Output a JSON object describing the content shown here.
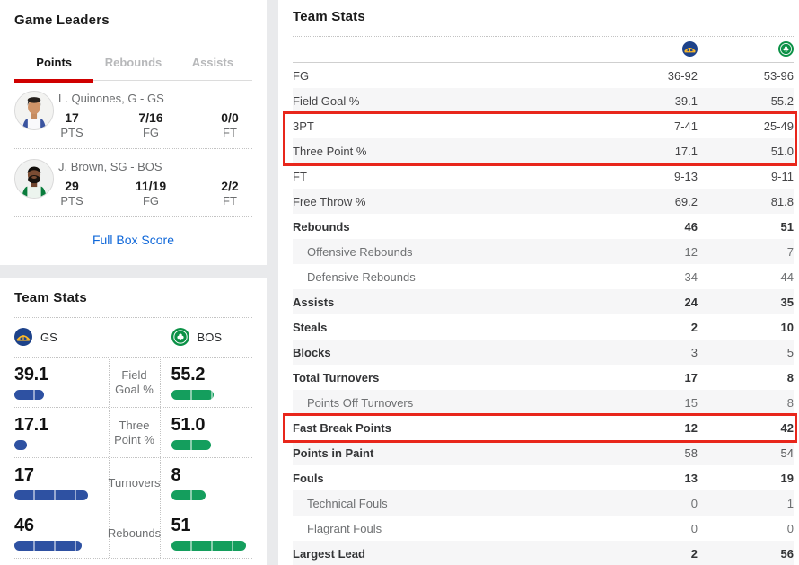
{
  "colors": {
    "bar_blue": "#2e51a2",
    "bar_green": "#149e5d",
    "tab_accent_red": "#d00000",
    "link_blue": "#1068d9",
    "highlight_red": "#e8261b",
    "gs_logo_blue": "#1d428a",
    "gs_logo_gold": "#fdb927",
    "bos_logo_green": "#0b9146"
  },
  "game_leaders": {
    "title": "Game Leaders",
    "tabs": [
      {
        "label": "Points",
        "active": true
      },
      {
        "label": "Rebounds",
        "active": false
      },
      {
        "label": "Assists",
        "active": false
      }
    ],
    "leaders": [
      {
        "name": "L. Quinones, G - GS",
        "avatar": "player1",
        "stats": [
          {
            "value": "17",
            "label": "PTS"
          },
          {
            "value": "7/16",
            "label": "FG"
          },
          {
            "value": "0/0",
            "label": "FT"
          }
        ]
      },
      {
        "name": "J. Brown, SG - BOS",
        "avatar": "player2",
        "stats": [
          {
            "value": "29",
            "label": "PTS"
          },
          {
            "value": "11/19",
            "label": "FG"
          },
          {
            "value": "2/2",
            "label": "FT"
          }
        ]
      }
    ],
    "link_label": "Full Box Score"
  },
  "left_team_stats": {
    "title": "Team Stats",
    "teams": [
      {
        "abbr": "GS",
        "logo": "warriors-logo"
      },
      {
        "abbr": "BOS",
        "logo": "celtics-logo"
      }
    ],
    "rows": [
      {
        "label": "Field Goal %",
        "gs": "39.1",
        "bos": "55.2",
        "gs_bar_pct": 37,
        "bos_bar_pct": 53
      },
      {
        "label": "Three Point %",
        "gs": "17.1",
        "bos": "51.0",
        "gs_bar_pct": 16,
        "bos_bar_pct": 49
      },
      {
        "label": "Turnovers",
        "gs": "17",
        "bos": "8",
        "gs_bar_pct": 91,
        "bos_bar_pct": 43
      },
      {
        "label": "Rebounds",
        "gs": "46",
        "bos": "51",
        "gs_bar_pct": 83,
        "bos_bar_pct": 92
      }
    ]
  },
  "right_team_stats": {
    "title": "Team Stats",
    "rows": [
      {
        "label": "FG",
        "gs": "36-92",
        "bos": "53-96",
        "variant": "plain",
        "value_bold": false,
        "highlight": 0
      },
      {
        "label": "Field Goal %",
        "gs": "39.1",
        "bos": "55.2",
        "variant": "plain",
        "value_bold": false,
        "highlight": 0
      },
      {
        "label": "3PT",
        "gs": "7-41",
        "bos": "25-49",
        "variant": "plain",
        "value_bold": false,
        "highlight": 1
      },
      {
        "label": "Three Point %",
        "gs": "17.1",
        "bos": "51.0",
        "variant": "plain",
        "value_bold": false,
        "highlight": 1
      },
      {
        "label": "FT",
        "gs": "9-13",
        "bos": "9-11",
        "variant": "plain",
        "value_bold": false,
        "highlight": 0
      },
      {
        "label": "Free Throw %",
        "gs": "69.2",
        "bos": "81.8",
        "variant": "plain",
        "value_bold": false,
        "highlight": 0
      },
      {
        "label": "Rebounds",
        "gs": "46",
        "bos": "51",
        "variant": "main",
        "value_bold": true,
        "highlight": 0
      },
      {
        "label": "Offensive Rebounds",
        "gs": "12",
        "bos": "7",
        "variant": "sub",
        "value_bold": false,
        "highlight": 0
      },
      {
        "label": "Defensive Rebounds",
        "gs": "34",
        "bos": "44",
        "variant": "sub",
        "value_bold": false,
        "highlight": 0
      },
      {
        "label": "Assists",
        "gs": "24",
        "bos": "35",
        "variant": "main",
        "value_bold": true,
        "highlight": 0
      },
      {
        "label": "Steals",
        "gs": "2",
        "bos": "10",
        "variant": "main",
        "value_bold": true,
        "highlight": 0
      },
      {
        "label": "Blocks",
        "gs": "3",
        "bos": "5",
        "variant": "main",
        "value_bold": false,
        "highlight": 0
      },
      {
        "label": "Total Turnovers",
        "gs": "17",
        "bos": "8",
        "variant": "main",
        "value_bold": true,
        "highlight": 0
      },
      {
        "label": "Points Off Turnovers",
        "gs": "15",
        "bos": "8",
        "variant": "sub",
        "value_bold": false,
        "highlight": 0
      },
      {
        "label": "Fast Break Points",
        "gs": "12",
        "bos": "42",
        "variant": "main",
        "value_bold": true,
        "highlight": 2
      },
      {
        "label": "Points in Paint",
        "gs": "58",
        "bos": "54",
        "variant": "main",
        "value_bold": false,
        "highlight": 0
      },
      {
        "label": "Fouls",
        "gs": "13",
        "bos": "19",
        "variant": "main",
        "value_bold": true,
        "highlight": 0
      },
      {
        "label": "Technical Fouls",
        "gs": "0",
        "bos": "1",
        "variant": "sub",
        "value_bold": false,
        "highlight": 0
      },
      {
        "label": "Flagrant Fouls",
        "gs": "0",
        "bos": "0",
        "variant": "sub",
        "value_bold": false,
        "highlight": 0
      },
      {
        "label": "Largest Lead",
        "gs": "2",
        "bos": "56",
        "variant": "main",
        "value_bold": true,
        "highlight": 0
      }
    ]
  }
}
